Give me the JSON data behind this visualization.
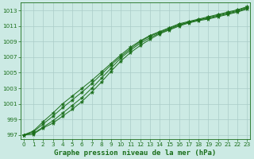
{
  "x": [
    0,
    1,
    2,
    3,
    4,
    5,
    6,
    7,
    8,
    9,
    10,
    11,
    12,
    13,
    14,
    15,
    16,
    17,
    18,
    19,
    20,
    21,
    22,
    23
  ],
  "lines": [
    [
      997.0,
      997.1,
      997.9,
      998.5,
      999.4,
      1000.3,
      1001.3,
      1002.5,
      1003.8,
      1005.2,
      1006.5,
      1007.6,
      1008.5,
      1009.3,
      1010.0,
      1010.5,
      1011.0,
      1011.4,
      1011.7,
      1011.9,
      1012.2,
      1012.5,
      1012.8,
      1013.2
    ],
    [
      997.0,
      997.2,
      998.0,
      998.8,
      999.8,
      1000.8,
      1001.8,
      1003.0,
      1004.3,
      1005.6,
      1006.9,
      1007.9,
      1008.8,
      1009.5,
      1010.1,
      1010.6,
      1011.1,
      1011.5,
      1011.8,
      1012.0,
      1012.3,
      1012.6,
      1012.9,
      1013.3
    ],
    [
      997.0,
      997.4,
      998.4,
      999.4,
      1000.5,
      1001.5,
      1002.5,
      1003.6,
      1004.8,
      1006.0,
      1007.1,
      1008.1,
      1009.0,
      1009.7,
      1010.2,
      1010.7,
      1011.2,
      1011.5,
      1011.8,
      1012.1,
      1012.4,
      1012.7,
      1013.0,
      1013.4
    ],
    [
      997.0,
      997.5,
      998.7,
      999.8,
      1001.0,
      1002.0,
      1003.0,
      1004.0,
      1005.1,
      1006.2,
      1007.3,
      1008.3,
      1009.1,
      1009.8,
      1010.3,
      1010.8,
      1011.3,
      1011.6,
      1011.9,
      1012.2,
      1012.5,
      1012.8,
      1013.1,
      1013.5
    ]
  ],
  "line_color": "#1a6e1a",
  "marker": "*",
  "marker_size": 3.5,
  "bg_color": "#cceae4",
  "grid_color": "#aaccc8",
  "ylim": [
    996.5,
    1014.0
  ],
  "yticks": [
    997,
    999,
    1001,
    1003,
    1005,
    1007,
    1009,
    1011,
    1013
  ],
  "xlim": [
    -0.3,
    23.3
  ],
  "xlabel": "Graphe pression niveau de la mer (hPa)",
  "xlabel_fontsize": 6.5,
  "tick_fontsize": 5.2,
  "axis_label_color": "#1a6e1a",
  "linewidth": 0.7
}
